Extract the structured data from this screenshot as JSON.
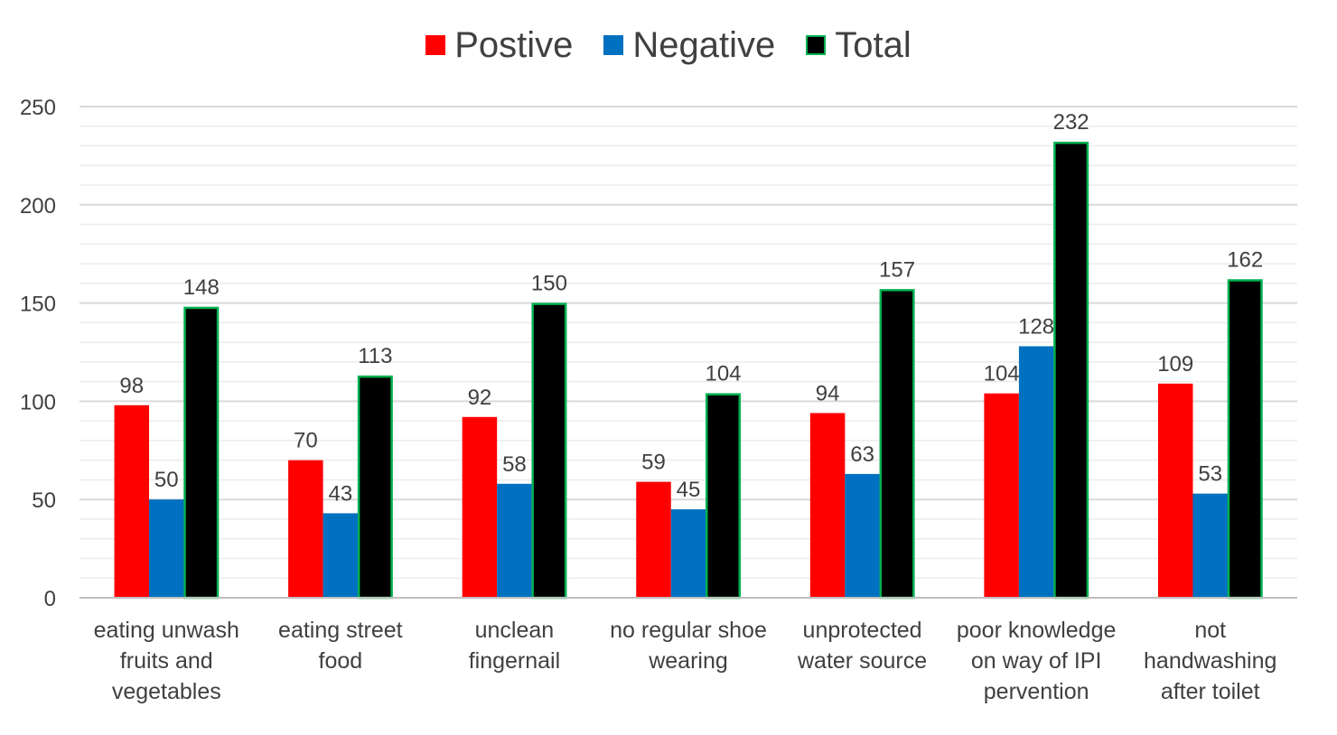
{
  "chart_data": {
    "type": "bar",
    "title": "",
    "xlabel": "",
    "ylabel": "",
    "ylim": [
      0,
      250
    ],
    "yticks": [
      0,
      50,
      100,
      150,
      200,
      250
    ],
    "grid": true,
    "legend_position": "top",
    "categories": [
      [
        "eating unwash",
        "fruits and",
        "vegetables"
      ],
      [
        "eating street",
        "food"
      ],
      [
        "unclean",
        "fingernail"
      ],
      [
        "no regular shoe",
        "wearing"
      ],
      [
        "unprotected",
        "water source"
      ],
      [
        "poor knowledge",
        "on way of IPI",
        "pervention"
      ],
      [
        "not",
        "handwashing",
        "after toilet"
      ]
    ],
    "series": [
      {
        "name": "Postive",
        "color": "#ff0000",
        "values": [
          98,
          70,
          92,
          59,
          94,
          104,
          109
        ]
      },
      {
        "name": "Negative",
        "color": "#0070c0",
        "values": [
          50,
          43,
          58,
          45,
          63,
          128,
          53
        ]
      },
      {
        "name": "Total",
        "color": "#000000",
        "outline": "#00b050",
        "values": [
          148,
          113,
          150,
          104,
          157,
          232,
          162
        ]
      }
    ]
  }
}
